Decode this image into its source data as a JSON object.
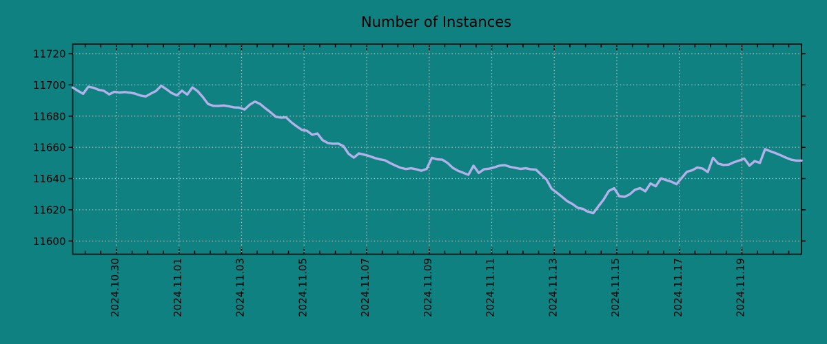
{
  "chart_data": {
    "type": "line",
    "title": "Number of Instances",
    "legend": "none",
    "grid": "dotted lines at every major tick, both axes",
    "background_color": "#108181",
    "line_color": "#b3b1ea",
    "grid_color": "#c9c9c9",
    "axis_color": "#000000",
    "ylim_labeled": [
      11600,
      11720
    ],
    "y_ticks": [
      11600,
      11620,
      11640,
      11660,
      11680,
      11700,
      11720
    ],
    "y_tick_labels": [
      "11600",
      "11620",
      "11640",
      "11660",
      "11680",
      "11700",
      "11720"
    ],
    "x_tick_labels": [
      "2024.10.30",
      "2024.11.01",
      "2024.11.03",
      "2024.11.05",
      "2024.11.07",
      "2024.11.09",
      "2024.11.11",
      "2024.11.13",
      "2024.11.15",
      "2024.11.17",
      "2024.11.19"
    ],
    "x_tick_day_offsets": [
      0,
      2,
      4,
      6,
      8,
      10,
      12,
      14,
      16,
      18,
      20
    ],
    "x_minor_tick_interval_days": 0.5,
    "x_axis_start_day_offset": -1.4,
    "x_axis_end_day_offset": 21.9,
    "series": [
      {
        "name": "Number of Instances",
        "x_start": "2024-10-28 14:00",
        "x_step_hours": 4,
        "values": [
          11698.3,
          11696.2,
          11694.3,
          11698.8,
          11698.2,
          11696.8,
          11696.2,
          11693.9,
          11695.6,
          11695.1,
          11695.4,
          11695.0,
          11694.4,
          11693.2,
          11692.6,
          11694.4,
          11696.1,
          11699.4,
          11697.2,
          11694.8,
          11693.3,
          11696.3,
          11693.8,
          11698.4,
          11696.0,
          11692.2,
          11687.8,
          11686.6,
          11686.5,
          11686.8,
          11686.3,
          11685.6,
          11685.4,
          11684.2,
          11687.3,
          11689.3,
          11687.8,
          11685.0,
          11682.5,
          11679.6,
          11679.0,
          11679.2,
          11676.0,
          11673.5,
          11671.2,
          11670.6,
          11668.1,
          11668.9,
          11664.6,
          11662.8,
          11662.3,
          11662.4,
          11660.8,
          11655.9,
          11653.4,
          11656.1,
          11655.3,
          11654.4,
          11653.2,
          11652.3,
          11651.7,
          11649.9,
          11648.3,
          11646.9,
          11646.1,
          11646.6,
          11645.9,
          11645.0,
          11646.2,
          11653.3,
          11652.3,
          11652.1,
          11650.0,
          11646.9,
          11645.0,
          11643.7,
          11642.4,
          11648.2,
          11643.6,
          11645.9,
          11646.3,
          11647.2,
          11648.3,
          11648.6,
          11647.5,
          11646.9,
          11646.2,
          11646.6,
          11645.9,
          11645.7,
          11642.5,
          11639.4,
          11633.5,
          11631.0,
          11628.3,
          11625.5,
          11623.7,
          11621.3,
          11620.6,
          11618.7,
          11617.9,
          11622.3,
          11626.6,
          11632.1,
          11633.8,
          11628.7,
          11628.3,
          11629.9,
          11632.8,
          11633.9,
          11631.8,
          11636.9,
          11635.1,
          11640.1,
          11639.0,
          11638.0,
          11636.4,
          11640.5,
          11644.4,
          11645.3,
          11647.1,
          11646.4,
          11644.2,
          11653.3,
          11649.6,
          11648.7,
          11648.9,
          11650.4,
          11651.5,
          11652.8,
          11648.3,
          11651.2,
          11650.0,
          11658.8,
          11657.5,
          11656.3,
          11654.9,
          11653.4,
          11652.1,
          11651.5,
          11651.5
        ]
      }
    ]
  }
}
